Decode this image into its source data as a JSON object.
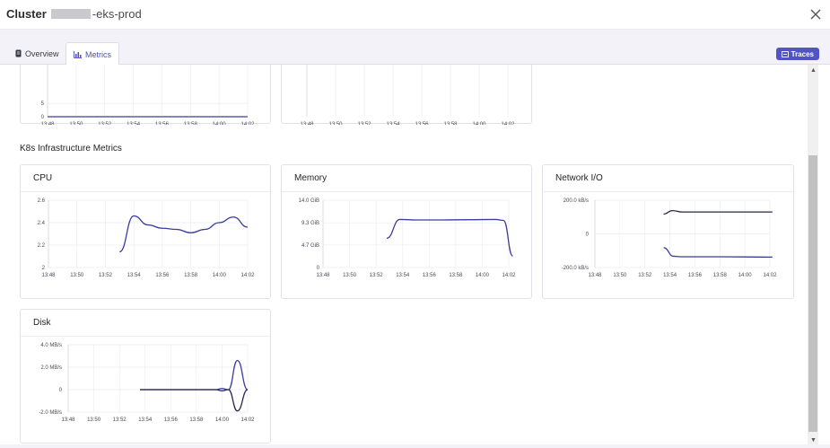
{
  "header": {
    "title_bold": "Cluster",
    "title_rest": "-eks-prod",
    "close_icon": "close-icon"
  },
  "tabs": [
    {
      "label": "Overview",
      "icon": "document-icon",
      "active": false
    },
    {
      "label": "Metrics",
      "icon": "bar-chart-icon",
      "active": true
    }
  ],
  "traces_button": {
    "label": "Traces",
    "icon": "traces-icon"
  },
  "section_title": "K8s Infrastructure Metrics",
  "colors": {
    "accent": "#5254c4",
    "line": "#3a3d9c",
    "line_dark": "#26264a"
  },
  "time_ticks": [
    "13:48",
    "13:50",
    "13:52",
    "13:54",
    "13:56",
    "13:58",
    "14:00",
    "14:02"
  ],
  "chart_data": [
    {
      "id": "top-left-partial",
      "type": "line",
      "title": "",
      "x": [
        "13:48",
        "13:50",
        "13:52",
        "13:54",
        "13:56",
        "13:58",
        "14:00",
        "14:02"
      ],
      "y_ticks": [
        "5",
        "0"
      ],
      "series": [
        {
          "values": [
            0,
            0,
            0,
            0,
            0,
            0,
            0,
            0
          ]
        }
      ]
    },
    {
      "id": "top-middle-partial",
      "type": "line",
      "title": "",
      "x": [
        "13:48",
        "13:50",
        "13:52",
        "13:54",
        "13:56",
        "13:58",
        "14:00",
        "14:02"
      ],
      "y_ticks": [],
      "series": []
    },
    {
      "id": "cpu",
      "type": "line",
      "title": "CPU",
      "x": [
        "13:48",
        "13:50",
        "13:52",
        "13:54",
        "13:56",
        "13:58",
        "14:00",
        "14:02"
      ],
      "y_ticks": [
        "2.6",
        "2.4",
        "2.2",
        "2"
      ],
      "ylim": [
        2,
        2.6
      ],
      "series": [
        {
          "points": [
            [
              "13:53",
              2.14
            ],
            [
              "13:54",
              2.46
            ],
            [
              "13:55",
              2.38
            ],
            [
              "13:56",
              2.35
            ],
            [
              "13:57",
              2.34
            ],
            [
              "13:58",
              2.31
            ],
            [
              "13:59",
              2.34
            ],
            [
              "14:00",
              2.4
            ],
            [
              "14:01",
              2.45
            ],
            [
              "14:02",
              2.36
            ]
          ]
        }
      ]
    },
    {
      "id": "memory",
      "type": "line",
      "title": "Memory",
      "x": [
        "13:48",
        "13:50",
        "13:52",
        "13:54",
        "13:56",
        "13:58",
        "14:00",
        "14:02"
      ],
      "y_ticks": [
        "14.0 GiB",
        "9.3 GiB",
        "4.7 GiB",
        "0"
      ],
      "ylim": [
        0,
        14
      ],
      "series": [
        {
          "points": [
            [
              "13:52.8",
              6.1
            ],
            [
              "13:53.8",
              10.0
            ],
            [
              "13:55",
              9.9
            ],
            [
              "13:57",
              9.9
            ],
            [
              "13:59",
              9.95
            ],
            [
              "14:01",
              10.0
            ],
            [
              "14:01.6",
              9.8
            ],
            [
              "14:02.3",
              2.4
            ]
          ]
        }
      ]
    },
    {
      "id": "network",
      "type": "line",
      "title": "Network I/O",
      "x": [
        "13:48",
        "13:50",
        "13:52",
        "13:54",
        "13:56",
        "13:58",
        "14:00",
        "14:02"
      ],
      "y_ticks": [
        "200.0 kB/s",
        "0",
        "-200.0 kB/s"
      ],
      "ylim": [
        -200,
        200
      ],
      "series": [
        {
          "points": [
            [
              "13:53.5",
              118
            ],
            [
              "13:54.2",
              138
            ],
            [
              "13:55",
              130
            ],
            [
              "13:58",
              130
            ],
            [
              "14:02.2",
              130
            ]
          ]
        },
        {
          "points": [
            [
              "13:53.5",
              -82
            ],
            [
              "13:54.3",
              -133
            ],
            [
              "13:55",
              -136
            ],
            [
              "13:58",
              -136
            ],
            [
              "14:02.2",
              -138
            ]
          ]
        }
      ]
    },
    {
      "id": "disk",
      "type": "line",
      "title": "Disk",
      "x": [
        "13:48",
        "13:50",
        "13:52",
        "13:54",
        "13:56",
        "13:58",
        "14:00",
        "14:02"
      ],
      "y_ticks": [
        "4.0 MB/s",
        "2.0 MB/s",
        "0",
        "-2.0 MB/s"
      ],
      "ylim": [
        -2,
        4
      ],
      "series": [
        {
          "points": [
            [
              "13:53.6",
              0
            ],
            [
              "13:59.5",
              0
            ],
            [
              "14:00",
              0.1
            ],
            [
              "14:00.5",
              0
            ],
            [
              "14:01.2",
              2.6
            ],
            [
              "14:02",
              0
            ]
          ]
        },
        {
          "points": [
            [
              "13:53.6",
              0
            ],
            [
              "13:59.5",
              0
            ],
            [
              "14:00",
              -0.1
            ],
            [
              "14:00.5",
              0
            ],
            [
              "14:01.2",
              -1.9
            ],
            [
              "14:02",
              0
            ]
          ]
        }
      ]
    }
  ]
}
